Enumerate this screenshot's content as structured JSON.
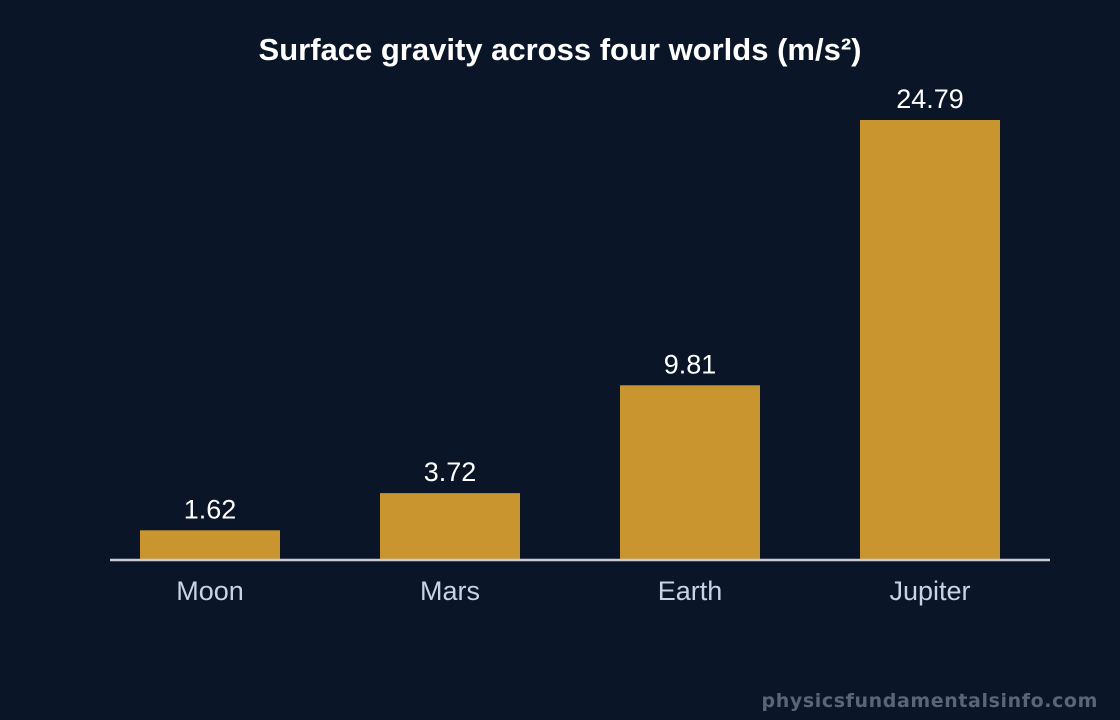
{
  "chart_data": {
    "type": "bar",
    "title": "Surface gravity across four worlds (m/s²)",
    "categories": [
      "Moon",
      "Mars",
      "Earth",
      "Jupiter"
    ],
    "values": [
      1.62,
      3.72,
      9.81,
      24.79
    ],
    "value_labels": [
      "1.62",
      "3.72",
      "9.81",
      "24.79"
    ],
    "xlabel": "",
    "ylabel": "",
    "ylim": [
      0,
      24.79
    ],
    "grid": false,
    "legend": "none"
  },
  "colors": {
    "background": "#0b1528",
    "bar": "#c8952e",
    "title": "#ffffff",
    "value_label": "#ffffff",
    "category_label": "#c9d3e3",
    "baseline": "#c9ccd2",
    "watermark": "#5c6576"
  },
  "watermark": "physicsfundamentalsinfo.com"
}
